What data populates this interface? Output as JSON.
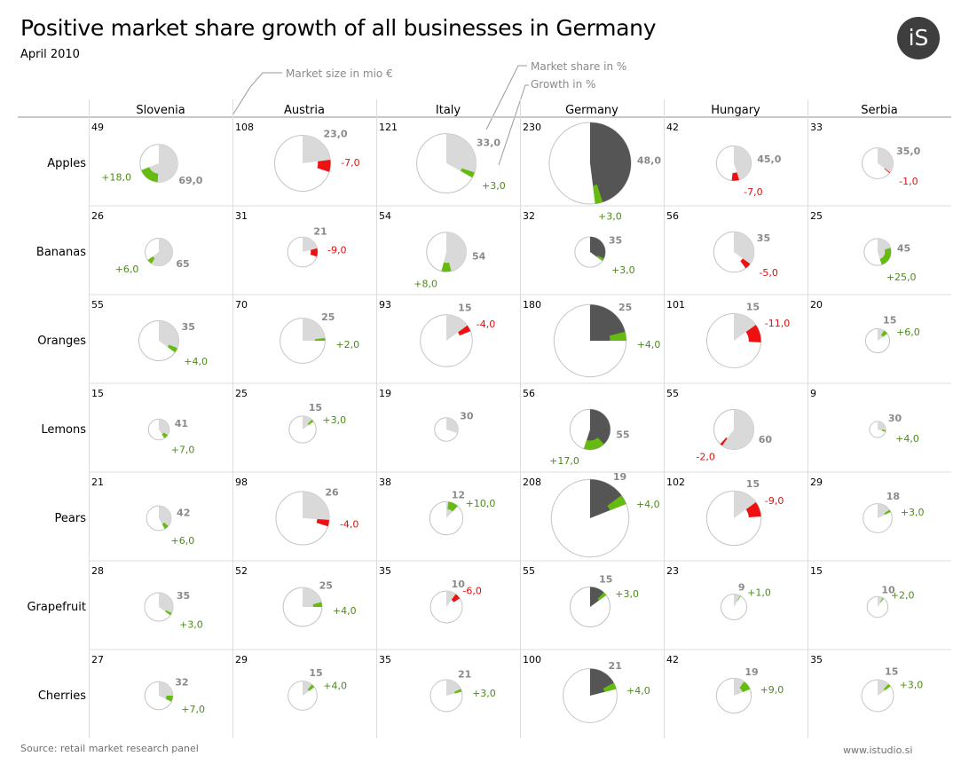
{
  "header": {
    "title": "Positive market share growth of all businesses in Germany",
    "subtitle": "April 2010",
    "logo_text": "iS"
  },
  "legend": {
    "size_label": "Market size in mio €",
    "share_label": "Market share in  %",
    "growth_label": "Growth in  %"
  },
  "footer": {
    "source": "Source: retail market research panel",
    "website": "www.istudio.si"
  },
  "colors": {
    "highlight_share": "#555555",
    "share": "#d9d9d9",
    "positive": "#66bb10",
    "negative": "#ee1111",
    "positive_text": "#4d8a1a",
    "negative_text": "#dd1111",
    "share_text": "#8a8a8a",
    "outline": "#c4c4c4"
  },
  "chart_data": {
    "type": "pie",
    "title": "Positive market share growth of all businesses in Germany",
    "highlight_country": "Germany",
    "countries": [
      "Slovenia",
      "Austria",
      "Italy",
      "Germany",
      "Hungary",
      "Serbia"
    ],
    "products": [
      "Apples",
      "Bananas",
      "Oranges",
      "Lemons",
      "Pears",
      "Grapefruit",
      "Cherries"
    ],
    "market_size": [
      [
        49,
        108,
        121,
        230,
        42,
        33
      ],
      [
        26,
        31,
        54,
        32,
        56,
        25
      ],
      [
        55,
        70,
        93,
        180,
        101,
        20
      ],
      [
        15,
        25,
        19,
        56,
        55,
        9
      ],
      [
        21,
        98,
        38,
        208,
        102,
        29
      ],
      [
        28,
        52,
        35,
        55,
        23,
        15
      ],
      [
        27,
        29,
        35,
        100,
        42,
        35
      ]
    ],
    "share": [
      [
        69,
        23,
        33,
        48,
        45,
        35
      ],
      [
        65,
        21,
        54,
        35,
        35,
        45
      ],
      [
        35,
        25,
        15,
        25,
        15,
        15
      ],
      [
        41,
        15,
        30,
        55,
        60,
        30
      ],
      [
        42,
        26,
        12,
        19,
        15,
        18
      ],
      [
        35,
        25,
        10,
        15,
        9,
        10
      ],
      [
        32,
        15,
        21,
        21,
        19,
        15
      ]
    ],
    "growth": [
      [
        18,
        -7,
        3,
        3,
        -7,
        -1
      ],
      [
        6,
        -9,
        8,
        3,
        -5,
        25
      ],
      [
        4,
        2,
        -4,
        4,
        -11,
        6
      ],
      [
        7,
        3,
        0,
        17,
        -2,
        4
      ],
      [
        6,
        -4,
        10,
        4,
        -9,
        3
      ],
      [
        3,
        4,
        -6,
        3,
        1,
        2
      ],
      [
        7,
        4,
        3,
        4,
        9,
        3
      ]
    ],
    "size_labels": [
      [
        "49",
        "108",
        "121",
        "230",
        "42",
        "33"
      ],
      [
        "26",
        "31",
        "54",
        "32",
        "56",
        "25"
      ],
      [
        "55",
        "70",
        "93",
        "180",
        "101",
        "20"
      ],
      [
        "15",
        "25",
        "19",
        "56",
        "55",
        "9"
      ],
      [
        "21",
        "98",
        "38",
        "208",
        "102",
        "29"
      ],
      [
        "28",
        "52",
        "35",
        "55",
        "23",
        "15"
      ],
      [
        "27",
        "29",
        "35",
        "100",
        "42",
        "35"
      ]
    ],
    "share_labels": [
      [
        "69,0",
        "23,0",
        "33,0",
        "48,0",
        "45,0",
        "35,0"
      ],
      [
        "65",
        "21",
        "54",
        "35",
        "35",
        "45"
      ],
      [
        "35",
        "25",
        "15",
        "25",
        "15",
        "15"
      ],
      [
        "41",
        "15",
        "30",
        "55",
        "60",
        "30"
      ],
      [
        "42",
        "26",
        "12",
        "19",
        "15",
        "18"
      ],
      [
        "35",
        "25",
        "10",
        "15",
        "9",
        "10"
      ],
      [
        "32",
        "15",
        "21",
        "21",
        "19",
        "15"
      ]
    ],
    "growth_labels": [
      [
        "+18,0",
        "-7,0",
        "+3,0",
        "+3,0",
        "-7,0",
        "-1,0"
      ],
      [
        "+6,0",
        "-9,0",
        "+8,0",
        "+3,0",
        "-5,0",
        "+25,0"
      ],
      [
        "+4,0",
        "+2,0",
        "-4,0",
        "+4,0",
        "-11,0",
        "+6,0"
      ],
      [
        "+7,0",
        "+3,0",
        "",
        "+17,0",
        "-2,0",
        "+4,0"
      ],
      [
        "+6,0",
        "-4,0",
        "+10,0",
        "+4,0",
        "-9,0",
        "+3,0"
      ],
      [
        "+3,0",
        "+4,0",
        "-6,0",
        "+3,0",
        "+1,0",
        "+2,0"
      ],
      [
        "+7,0",
        "+4,0",
        "+3,0",
        "+4,0",
        "+9,0",
        "+3,0"
      ]
    ]
  }
}
